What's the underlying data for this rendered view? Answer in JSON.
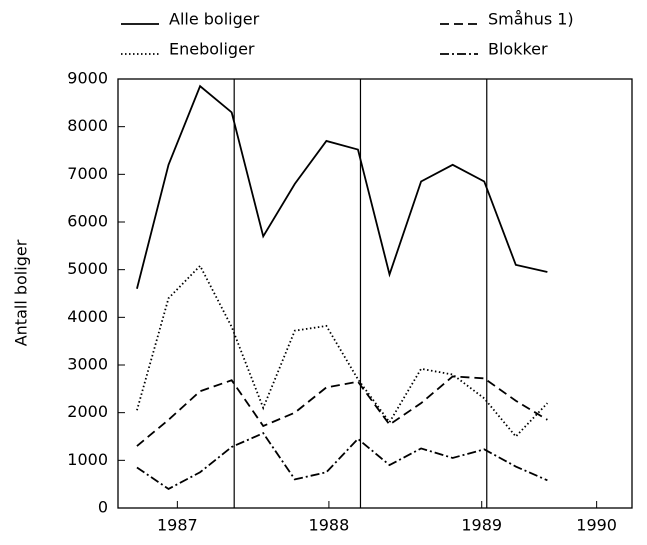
{
  "chart_data": {
    "type": "line",
    "ylabel": "Antall boliger",
    "x": [
      1986.75,
      1987.0,
      1987.25,
      1987.5,
      1987.75,
      1988.0,
      1988.25,
      1988.5,
      1988.75,
      1989.0,
      1989.25,
      1989.5,
      1989.75,
      1990.0
    ],
    "series": [
      {
        "name": "Alle boliger",
        "color": "#000000",
        "dash": "solid",
        "values": [
          4600,
          7200,
          8850,
          8300,
          5700,
          6800,
          7700,
          7520,
          4900,
          6850,
          7200,
          6850,
          5100,
          4950
        ]
      },
      {
        "name": "Småhus 1)",
        "color": "#000000",
        "dash": "dashed",
        "values": [
          1300,
          1850,
          2450,
          2680,
          1720,
          2000,
          2530,
          2650,
          1750,
          2200,
          2760,
          2720,
          2250,
          1850
        ]
      },
      {
        "name": "Eneboliger",
        "color": "#000000",
        "dash": "dotted",
        "values": [
          2050,
          4400,
          5080,
          3800,
          2100,
          3720,
          3820,
          2700,
          1800,
          2920,
          2800,
          2300,
          1500,
          2200
        ]
      },
      {
        "name": "Blokker",
        "color": "#000000",
        "dash": "dashdot",
        "values": [
          850,
          400,
          750,
          1280,
          1570,
          600,
          750,
          1450,
          900,
          1250,
          1050,
          1230,
          870,
          580
        ]
      }
    ],
    "xlim": [
      1986.6,
      1990.67
    ],
    "xticks": [
      {
        "value": 1987.07,
        "label": "1987"
      },
      {
        "value": 1988.27,
        "label": "1988"
      },
      {
        "value": 1989.48,
        "label": "1989"
      },
      {
        "value": 1990.39,
        "label": "1990"
      }
    ],
    "vlines": [
      1987.52,
      1988.52,
      1989.52
    ],
    "ylim": [
      0,
      9000
    ],
    "yticks": [
      0,
      1000,
      2000,
      3000,
      4000,
      5000,
      6000,
      7000,
      8000,
      9000
    ],
    "grid": false,
    "legend": "top"
  }
}
